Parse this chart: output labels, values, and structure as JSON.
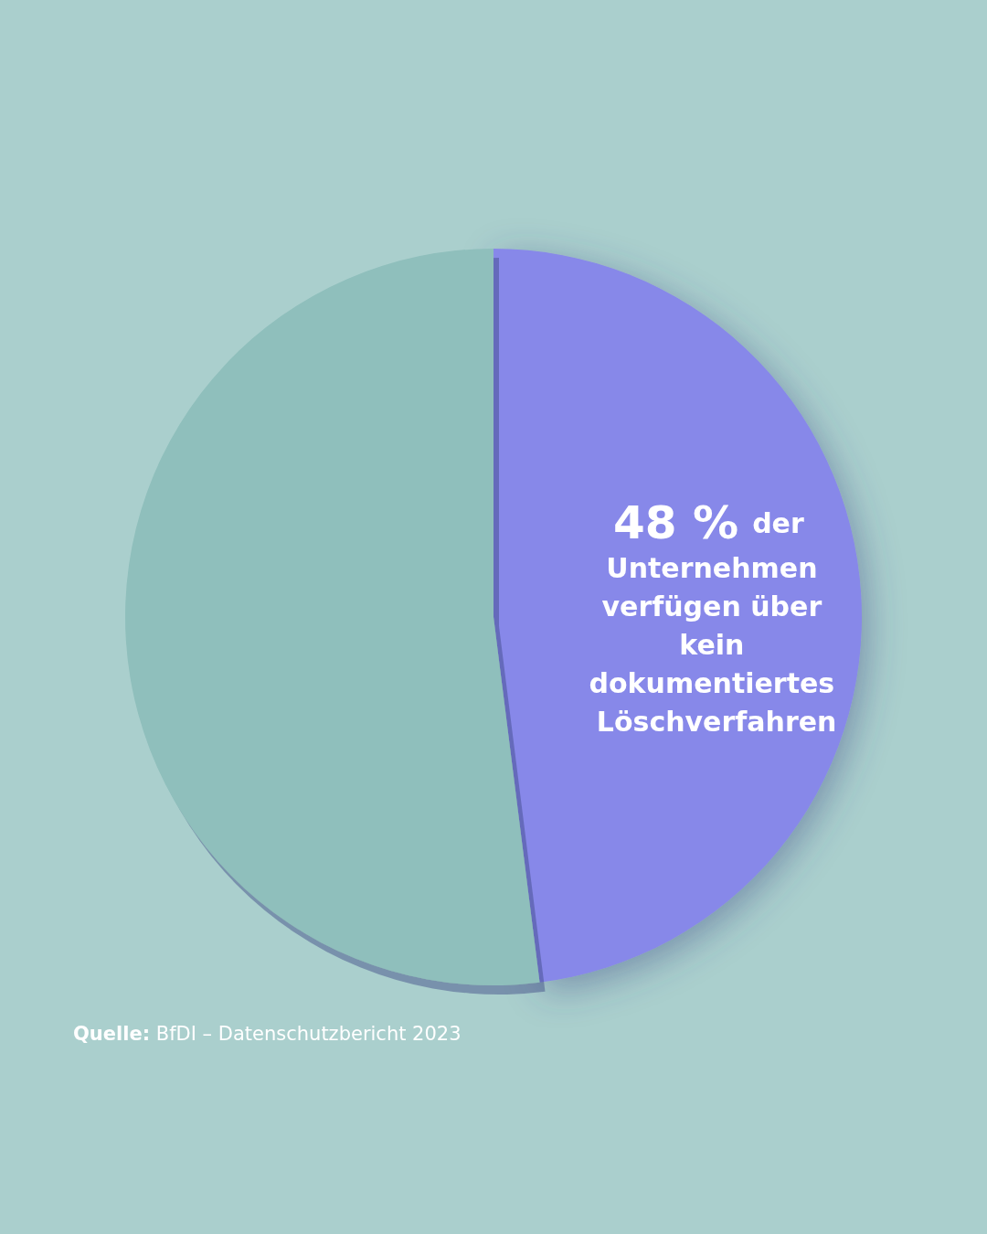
{
  "chart_data": {
    "type": "pie",
    "categories": [
      "der Unternehmen verfügen über kein dokumentiertes Löschverfahren",
      null
    ],
    "values": [
      48,
      52
    ],
    "value_labels": [
      "48 %",
      null
    ],
    "colors": [
      "#8788e9",
      "#8fbfbc"
    ],
    "legend": false,
    "annotations": [
      "Quelle: BfDI – Datenschutzbericht 2023"
    ]
  }
}
